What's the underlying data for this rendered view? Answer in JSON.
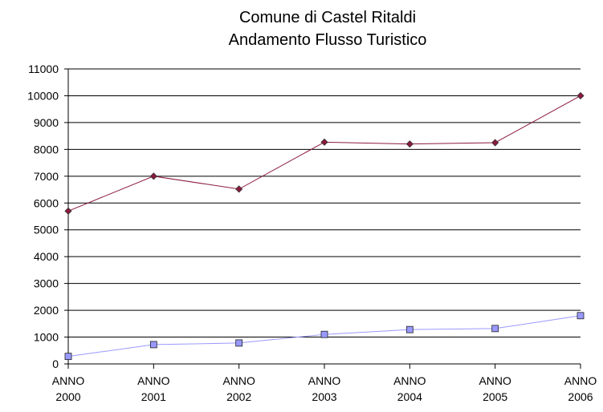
{
  "chart_data": {
    "type": "line",
    "title": "Comune di Castel Ritaldi",
    "subtitle": "Andamento Flusso Turistico",
    "categories": [
      "ANNO 2000",
      "ANNO 2001",
      "ANNO 2002",
      "ANNO 2003",
      "ANNO 2004",
      "ANNO 2005",
      "ANNO 2006"
    ],
    "series": [
      {
        "color": "#8b1a3c",
        "marker": "diamond",
        "values": [
          5700,
          7000,
          6520,
          8270,
          8200,
          8250,
          10000
        ]
      },
      {
        "color": "#9999ff",
        "marker": "square",
        "values": [
          280,
          720,
          780,
          1100,
          1280,
          1320,
          1800
        ]
      }
    ],
    "ylim": [
      0,
      11000
    ],
    "yticks": [
      0,
      1000,
      2000,
      3000,
      4000,
      5000,
      6000,
      7000,
      8000,
      9000,
      10000,
      11000
    ],
    "grid": true
  }
}
